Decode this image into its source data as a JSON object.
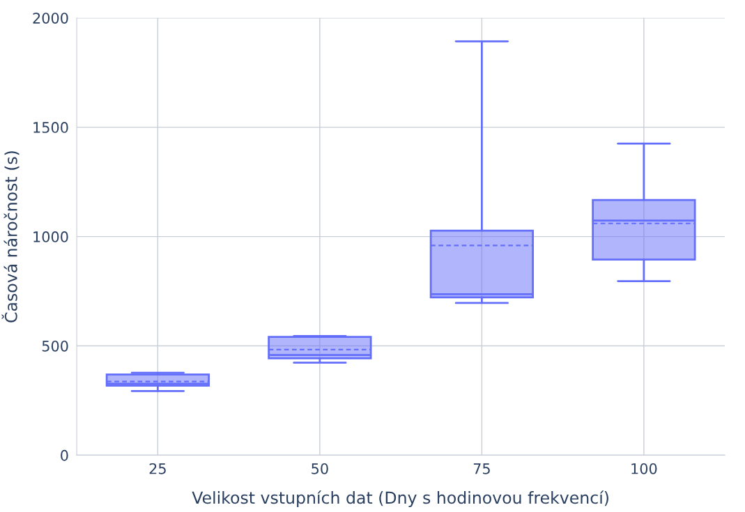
{
  "chart_data": {
    "type": "box",
    "xlabel": "Velikost vstupních dat (Dny s hodinovou frekvencí)",
    "ylabel": "Časová náročnost (s)",
    "categories": [
      "25",
      "50",
      "75",
      "100"
    ],
    "color": "#636efa",
    "boxes": [
      {
        "low": 293,
        "q1": 318,
        "median": 327,
        "q3": 369,
        "high": 377,
        "mean": 337
      },
      {
        "low": 423,
        "q1": 443,
        "median": 458,
        "q3": 541,
        "high": 545,
        "mean": 483
      },
      {
        "low": 696,
        "q1": 722,
        "median": 736,
        "q3": 1027,
        "high": 1893,
        "mean": 959
      },
      {
        "low": 796,
        "q1": 895,
        "median": 1073,
        "q3": 1167,
        "high": 1425,
        "mean": 1060
      }
    ],
    "ylim": [
      0,
      2000
    ],
    "yticks": [
      0,
      500,
      1000,
      1500,
      2000
    ],
    "grid": true
  }
}
